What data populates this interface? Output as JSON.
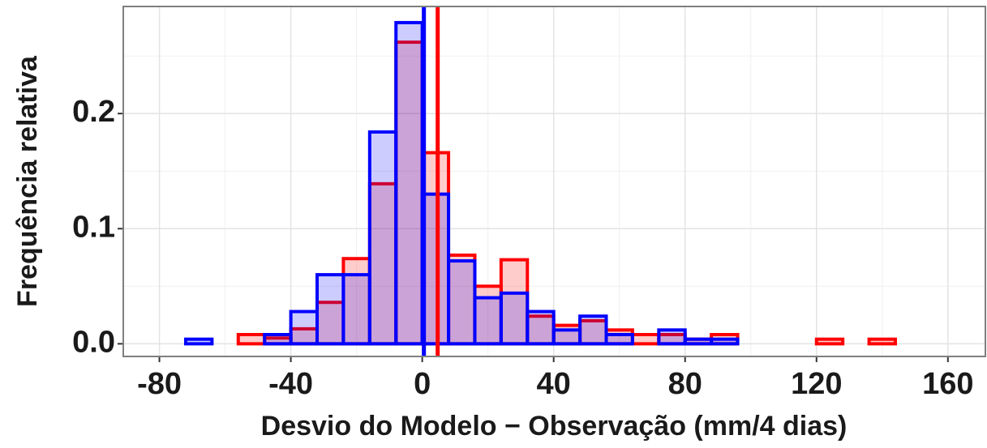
{
  "chart_data": {
    "type": "histogram",
    "xlabel": "Desvio do Modelo − Observação (mm/4 dias)",
    "ylabel": "Frequência relativa",
    "bins": [
      -80,
      -72,
      -64,
      -56,
      -48,
      -40,
      -32,
      -24,
      -16,
      -8,
      0,
      8,
      16,
      24,
      32,
      40,
      48,
      56,
      64,
      72,
      80,
      88,
      96,
      104,
      112,
      120,
      128,
      136,
      144,
      152,
      160
    ],
    "series": [
      {
        "color": "#ff0000",
        "vline": 4.7,
        "values": [
          0,
          0,
          0,
          0.008,
          0.005,
          0.013,
          0.036,
          0.074,
          0.139,
          0.262,
          0.166,
          0.077,
          0.05,
          0.073,
          0.024,
          0.016,
          0.02,
          0.012,
          0.008,
          0.008,
          0.004,
          0.008,
          0,
          0,
          0,
          0.004,
          0,
          0.004,
          0,
          0
        ]
      },
      {
        "color": "#0000ff",
        "vline": 0.5,
        "values": [
          0,
          0.004,
          0,
          0,
          0.008,
          0.028,
          0.06,
          0.06,
          0.184,
          0.279,
          0.13,
          0.072,
          0.04,
          0.044,
          0.028,
          0.012,
          0.024,
          0.008,
          0,
          0.012,
          0.004,
          0.004,
          0,
          0,
          0,
          0,
          0,
          0,
          0,
          0
        ]
      }
    ],
    "xlim": [
      -91,
      171.4
    ],
    "ylim": [
      -0.011,
      0.293
    ],
    "xticks": [
      -80,
      -40,
      0,
      40,
      80,
      120,
      160
    ],
    "yticks": [
      {
        "value": 0,
        "label": "0.0"
      },
      {
        "value": 0.1,
        "label": "0.1"
      },
      {
        "value": 0.2,
        "label": "0.2"
      }
    ],
    "grid": true
  }
}
